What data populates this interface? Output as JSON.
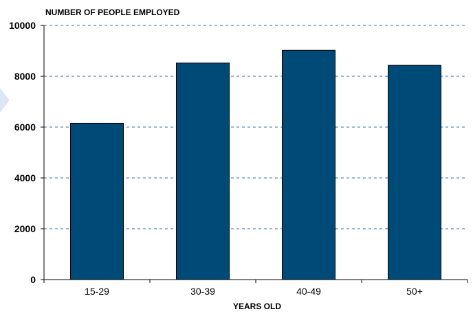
{
  "chart_data": {
    "type": "bar",
    "title": "",
    "ylabel": "NUMBER OF PEOPLE EMPLOYED",
    "xlabel": "YEARS OLD",
    "categories": [
      "15-29",
      "30-39",
      "40-49",
      "50+"
    ],
    "values": [
      6150,
      8520,
      9020,
      8430
    ],
    "ylim": [
      0,
      10000
    ],
    "yticks": [
      "0",
      "2000",
      "4000",
      "6000",
      "8000",
      "10000"
    ],
    "grid": true,
    "legend": "none",
    "bar_color": "#004a78",
    "grid_color": "#2f6f9f"
  }
}
